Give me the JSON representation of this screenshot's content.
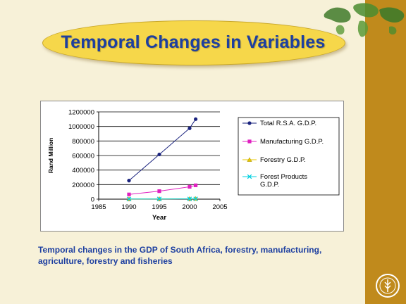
{
  "slide": {
    "title": "Temporal Changes in Variables",
    "caption_line1": "Temporal changes in the GDP of South Africa, forestry, manufacturing,",
    "caption_line2": "agriculture, forestry and fisheries"
  },
  "colors": {
    "background": "#f7f1d8",
    "side_bar": "#c08a1c",
    "title_fill": "#f6d74a",
    "title_text": "#1d3fa0"
  },
  "icons": [
    "world-map-graphic",
    "fao-logo-icon"
  ],
  "chart_data": {
    "type": "line",
    "xlabel": "Year",
    "ylabel": "Rand Million",
    "xlim": [
      1985,
      2005
    ],
    "ylim": [
      0,
      1200000
    ],
    "x_ticks": [
      "1985",
      "1990",
      "1995",
      "2000",
      "2005"
    ],
    "y_ticks": [
      "0",
      "200000",
      "400000",
      "600000",
      "800000",
      "1000000",
      "1200000"
    ],
    "grid": true,
    "legend_position": "right",
    "series": [
      {
        "name": "Total R.S.A. G.D.P.",
        "color": "#1a237e",
        "marker": "circle",
        "x": [
          1990,
          1995,
          2000,
          2001
        ],
        "y": [
          255000,
          615000,
          975000,
          1100000
        ]
      },
      {
        "name": "Manufacturing G.D.P.",
        "color": "#e020c0",
        "marker": "square",
        "x": [
          1990,
          1995,
          2000,
          2001
        ],
        "y": [
          65000,
          110000,
          170000,
          190000
        ]
      },
      {
        "name": "Forestry G.D.P.",
        "color": "#e8c800",
        "marker": "triangle",
        "x": [
          1990,
          1995,
          2000,
          2001
        ],
        "y": [
          3000,
          4000,
          5000,
          6000
        ]
      },
      {
        "name": "Forest Products G.D.P.",
        "legend_lines": [
          "Forest Products",
          "G.D.P."
        ],
        "color": "#00d0e0",
        "marker": "x",
        "x": [
          1990,
          1995,
          2000,
          2001
        ],
        "y": [
          2000,
          3000,
          4000,
          4500
        ]
      }
    ]
  }
}
